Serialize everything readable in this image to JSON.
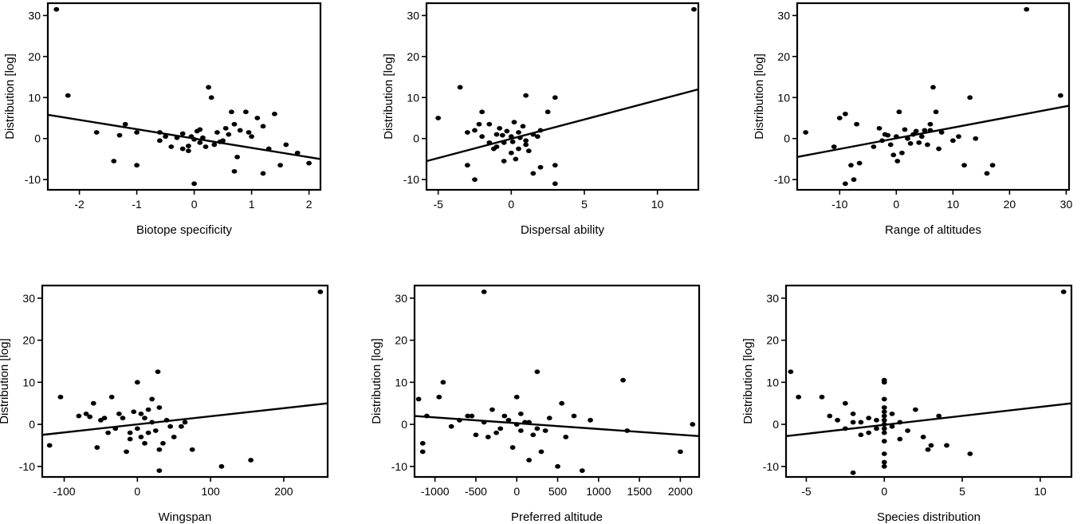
{
  "figure": {
    "background": "#ffffff",
    "ink": "#000000"
  },
  "chart_data": [
    {
      "type": "scatter",
      "title": "",
      "xlabel": "Biotope specificity",
      "ylabel": "Distribution [log]",
      "xlim": [
        -2.55,
        2.2
      ],
      "ylim": [
        -12.5,
        33
      ],
      "xticks": [
        -2,
        -1,
        0,
        1,
        2
      ],
      "yticks": [
        -10,
        0,
        10,
        20,
        30
      ],
      "points": [
        [
          -2.4,
          31.5
        ],
        [
          -2.2,
          10.5
        ],
        [
          -1.7,
          1.5
        ],
        [
          -1.4,
          -5.5
        ],
        [
          -1.0,
          -6.5
        ],
        [
          -1.2,
          3.5
        ],
        [
          -1.3,
          0.8
        ],
        [
          -1.0,
          1.5
        ],
        [
          -0.6,
          1.5
        ],
        [
          -0.5,
          0.5
        ],
        [
          -0.4,
          -2.0
        ],
        [
          -0.6,
          -0.5
        ],
        [
          -0.2,
          1.2
        ],
        [
          -0.1,
          -1.8
        ],
        [
          -0.05,
          0.5
        ],
        [
          0.0,
          -0.2
        ],
        [
          0.05,
          1.8
        ],
        [
          0.1,
          -1.0
        ],
        [
          0.15,
          0.2
        ],
        [
          0.2,
          -2.0
        ],
        [
          0.25,
          12.5
        ],
        [
          0.3,
          10.0
        ],
        [
          0.4,
          1.5
        ],
        [
          0.5,
          -0.5
        ],
        [
          0.6,
          1.0
        ],
        [
          0.65,
          6.5
        ],
        [
          0.7,
          3.5
        ],
        [
          0.75,
          -4.5
        ],
        [
          0.7,
          -8.0
        ],
        [
          0.9,
          6.5
        ],
        [
          1.0,
          0.5
        ],
        [
          1.2,
          3.0
        ],
        [
          1.3,
          -2.5
        ],
        [
          1.4,
          6.0
        ],
        [
          1.5,
          -6.5
        ],
        [
          1.6,
          -1.5
        ],
        [
          1.8,
          -3.5
        ],
        [
          2.0,
          -6.0
        ],
        [
          1.2,
          -8.5
        ],
        [
          0.0,
          -11.0
        ],
        [
          -0.1,
          -3.0
        ],
        [
          0.35,
          -1.5
        ],
        [
          0.8,
          2.0
        ],
        [
          0.45,
          -0.8
        ],
        [
          -0.3,
          0.2
        ],
        [
          0.95,
          1.5
        ],
        [
          1.1,
          5.0
        ],
        [
          0.1,
          2.2
        ],
        [
          -0.2,
          -2.5
        ],
        [
          0.55,
          2.5
        ]
      ],
      "fit": [
        [
          -2.55,
          5.8
        ],
        [
          2.2,
          -5.0
        ]
      ]
    },
    {
      "type": "scatter",
      "title": "",
      "xlabel": "Dispersal ability",
      "ylabel": "Distribution [log]",
      "xlim": [
        -5.8,
        12.8
      ],
      "ylim": [
        -12.5,
        33
      ],
      "xticks": [
        -5,
        0,
        5,
        10
      ],
      "yticks": [
        -10,
        0,
        10,
        20,
        30
      ],
      "points": [
        [
          12.5,
          31.5
        ],
        [
          -3.5,
          12.5
        ],
        [
          -5.0,
          5.0
        ],
        [
          -2.0,
          6.5
        ],
        [
          -3.0,
          -6.5
        ],
        [
          -2.5,
          -10.0
        ],
        [
          -1.5,
          3.5
        ],
        [
          -1.0,
          1.0
        ],
        [
          -0.5,
          -1.0
        ],
        [
          0.0,
          0.5
        ],
        [
          0.5,
          1.5
        ],
        [
          1.0,
          10.5
        ],
        [
          1.5,
          -8.5
        ],
        [
          2.0,
          -7.0
        ],
        [
          3.0,
          10.0
        ],
        [
          3.0,
          -6.5
        ],
        [
          3.0,
          -11.0
        ],
        [
          2.5,
          6.5
        ],
        [
          2.0,
          2.0
        ],
        [
          1.5,
          1.0
        ],
        [
          1.0,
          -0.5
        ],
        [
          0.5,
          -2.5
        ],
        [
          0.0,
          -3.5
        ],
        [
          -0.5,
          -5.5
        ],
        [
          -1.0,
          -2.0
        ],
        [
          -1.5,
          -1.0
        ],
        [
          -2.0,
          0.5
        ],
        [
          -2.5,
          2.0
        ],
        [
          -3.0,
          1.5
        ],
        [
          0.2,
          4.0
        ],
        [
          0.8,
          3.0
        ],
        [
          -0.8,
          2.5
        ],
        [
          1.2,
          -3.0
        ],
        [
          -0.3,
          1.8
        ],
        [
          0.6,
          0.2
        ],
        [
          1.8,
          0.5
        ],
        [
          -2.2,
          3.5
        ],
        [
          -1.2,
          -2.5
        ],
        [
          0.3,
          -5.0
        ],
        [
          1.0,
          -1.5
        ],
        [
          -0.6,
          0.8
        ],
        [
          0.1,
          -0.8
        ]
      ],
      "fit": [
        [
          -5.8,
          -5.5
        ],
        [
          12.8,
          12.0
        ]
      ]
    },
    {
      "type": "scatter",
      "title": "",
      "xlabel": "Range of altitudes",
      "ylabel": "Distribution [log]",
      "xlim": [
        -17.5,
        30.5
      ],
      "ylim": [
        -12.5,
        33
      ],
      "xticks": [
        -10,
        0,
        10,
        20,
        30
      ],
      "yticks": [
        -10,
        0,
        10,
        20,
        30
      ],
      "points": [
        [
          23.0,
          31.5
        ],
        [
          29.0,
          10.5
        ],
        [
          -16.0,
          1.5
        ],
        [
          -9.0,
          6.0
        ],
        [
          -10.0,
          5.0
        ],
        [
          -11.0,
          -2.0
        ],
        [
          -8.0,
          -6.5
        ],
        [
          -7.0,
          3.5
        ],
        [
          -7.5,
          -10.0
        ],
        [
          -9.0,
          -11.0
        ],
        [
          -6.5,
          -6.0
        ],
        [
          -4.0,
          -2.0
        ],
        [
          -2.0,
          1.0
        ],
        [
          -1.0,
          -1.5
        ],
        [
          0.0,
          0.5
        ],
        [
          0.5,
          6.5
        ],
        [
          1.0,
          -3.5
        ],
        [
          2.0,
          0.0
        ],
        [
          3.0,
          1.0
        ],
        [
          4.0,
          -1.0
        ],
        [
          5.0,
          2.0
        ],
        [
          6.0,
          3.5
        ],
        [
          6.5,
          12.5
        ],
        [
          7.0,
          6.5
        ],
        [
          7.5,
          -2.5
        ],
        [
          8.0,
          1.5
        ],
        [
          10.0,
          -0.5
        ],
        [
          11.0,
          0.5
        ],
        [
          12.0,
          -6.5
        ],
        [
          13.0,
          10.0
        ],
        [
          14.0,
          0.0
        ],
        [
          16.0,
          -8.5
        ],
        [
          17.0,
          -6.5
        ],
        [
          -3.0,
          2.5
        ],
        [
          -1.5,
          0.8
        ],
        [
          1.5,
          2.2
        ],
        [
          2.5,
          -1.2
        ],
        [
          4.5,
          0.5
        ],
        [
          -0.5,
          -4.0
        ],
        [
          0.2,
          -5.5
        ],
        [
          5.5,
          -1.5
        ],
        [
          3.5,
          1.8
        ],
        [
          -2.5,
          -0.5
        ],
        [
          6.0,
          2.0
        ]
      ],
      "fit": [
        [
          -17.5,
          -4.5
        ],
        [
          30.5,
          8.0
        ]
      ]
    },
    {
      "type": "scatter",
      "title": "",
      "xlabel": "Wingspan",
      "ylabel": "Distribution [log]",
      "xlim": [
        -130,
        260
      ],
      "ylim": [
        -12.5,
        33
      ],
      "xticks": [
        -100,
        0,
        100,
        200
      ],
      "yticks": [
        -10,
        0,
        10,
        20,
        30
      ],
      "points": [
        [
          250,
          31.5
        ],
        [
          -120,
          -5.0
        ],
        [
          -105,
          6.5
        ],
        [
          -80,
          2.0
        ],
        [
          -70,
          2.5
        ],
        [
          -60,
          5.0
        ],
        [
          -55,
          -5.5
        ],
        [
          -45,
          1.5
        ],
        [
          -35,
          6.5
        ],
        [
          -30,
          -1.0
        ],
        [
          -20,
          1.5
        ],
        [
          -15,
          -6.5
        ],
        [
          -10,
          -2.0
        ],
        [
          -5,
          3.0
        ],
        [
          0,
          10.0
        ],
        [
          5,
          -3.0
        ],
        [
          10,
          -4.5
        ],
        [
          15,
          3.5
        ],
        [
          20,
          6.0
        ],
        [
          25,
          -1.5
        ],
        [
          28,
          12.5
        ],
        [
          30,
          -6.0
        ],
        [
          30,
          -11.0
        ],
        [
          35,
          -4.5
        ],
        [
          45,
          -0.5
        ],
        [
          50,
          -3.0
        ],
        [
          60,
          -0.5
        ],
        [
          65,
          0.5
        ],
        [
          75,
          -6.0
        ],
        [
          115,
          -10.0
        ],
        [
          155,
          -8.5
        ],
        [
          -25,
          2.5
        ],
        [
          -50,
          1.0
        ],
        [
          -40,
          -2.0
        ],
        [
          0,
          -1.0
        ],
        [
          10,
          1.5
        ],
        [
          20,
          0.5
        ],
        [
          40,
          1.0
        ],
        [
          -10,
          -3.5
        ],
        [
          5,
          2.5
        ],
        [
          15,
          -2.0
        ],
        [
          -65,
          1.8
        ],
        [
          30,
          4.0
        ]
      ],
      "fit": [
        [
          -130,
          -2.5
        ],
        [
          260,
          5.0
        ]
      ]
    },
    {
      "type": "scatter",
      "title": "",
      "xlabel": "Preferred altitude",
      "ylabel": "Distribution [log]",
      "xlim": [
        -1250,
        2230
      ],
      "ylim": [
        -12.5,
        33
      ],
      "xticks": [
        -1000,
        -500,
        0,
        500,
        1000,
        1500,
        2000
      ],
      "yticks": [
        -10,
        0,
        10,
        20,
        30
      ],
      "points": [
        [
          -400,
          31.5
        ],
        [
          -1150,
          -6.5
        ],
        [
          -1100,
          2.0
        ],
        [
          -900,
          10.0
        ],
        [
          -800,
          -0.5
        ],
        [
          -600,
          2.0
        ],
        [
          -500,
          -2.5
        ],
        [
          -400,
          0.5
        ],
        [
          -300,
          3.5
        ],
        [
          -200,
          -1.0
        ],
        [
          -100,
          1.0
        ],
        [
          -50,
          -5.5
        ],
        [
          0,
          6.5
        ],
        [
          50,
          -1.5
        ],
        [
          100,
          0.5
        ],
        [
          150,
          -8.5
        ],
        [
          200,
          -2.5
        ],
        [
          250,
          12.5
        ],
        [
          300,
          -6.5
        ],
        [
          350,
          -1.5
        ],
        [
          400,
          1.5
        ],
        [
          500,
          -10.0
        ],
        [
          550,
          5.0
        ],
        [
          600,
          -3.0
        ],
        [
          700,
          2.0
        ],
        [
          800,
          -11.0
        ],
        [
          900,
          1.0
        ],
        [
          1300,
          10.5
        ],
        [
          1350,
          -1.5
        ],
        [
          2000,
          -6.5
        ],
        [
          2150,
          0.0
        ],
        [
          -700,
          1.0
        ],
        [
          -250,
          -2.0
        ],
        [
          -150,
          2.0
        ],
        [
          0,
          0.0
        ],
        [
          50,
          2.5
        ],
        [
          150,
          0.5
        ],
        [
          250,
          -1.0
        ],
        [
          -1200,
          6.0
        ],
        [
          -1150,
          -4.5
        ],
        [
          -950,
          6.5
        ],
        [
          -550,
          2.0
        ],
        [
          -350,
          -3.0
        ]
      ],
      "fit": [
        [
          -1250,
          2.0
        ],
        [
          2230,
          -2.8
        ]
      ]
    },
    {
      "type": "scatter",
      "title": "",
      "xlabel": "Species distribution",
      "ylabel": "Distribution [log]",
      "xlim": [
        -6.3,
        12.0
      ],
      "ylim": [
        -12.5,
        33
      ],
      "xticks": [
        -5,
        0,
        5,
        10
      ],
      "yticks": [
        -10,
        0,
        10,
        20,
        30
      ],
      "points": [
        [
          11.5,
          31.5
        ],
        [
          -6.0,
          12.5
        ],
        [
          -5.5,
          6.5
        ],
        [
          -4.0,
          6.5
        ],
        [
          -3.5,
          2.0
        ],
        [
          -3.0,
          1.0
        ],
        [
          -2.5,
          5.0
        ],
        [
          -2.0,
          -11.5
        ],
        [
          -2.0,
          2.5
        ],
        [
          -1.5,
          0.5
        ],
        [
          -1.0,
          -2.0
        ],
        [
          -0.5,
          -1.0
        ],
        [
          0.0,
          10.5
        ],
        [
          0.0,
          10.0
        ],
        [
          0.0,
          6.0
        ],
        [
          0.0,
          4.0
        ],
        [
          0.0,
          3.0
        ],
        [
          0.0,
          2.0
        ],
        [
          0.0,
          1.0
        ],
        [
          0.0,
          0.0
        ],
        [
          0.0,
          -1.0
        ],
        [
          0.0,
          -2.0
        ],
        [
          0.0,
          -4.0
        ],
        [
          0.0,
          -7.0
        ],
        [
          0.0,
          -9.0
        ],
        [
          0.0,
          -10.0
        ],
        [
          0.5,
          -0.5
        ],
        [
          1.0,
          0.5
        ],
        [
          1.5,
          -1.5
        ],
        [
          2.0,
          3.5
        ],
        [
          2.5,
          -3.0
        ],
        [
          3.0,
          -5.0
        ],
        [
          3.5,
          2.0
        ],
        [
          4.0,
          -5.0
        ],
        [
          5.5,
          -7.0
        ],
        [
          -2.5,
          -1.0
        ],
        [
          -1.5,
          -2.5
        ],
        [
          -1.0,
          1.5
        ],
        [
          0.5,
          2.5
        ],
        [
          -0.5,
          1.0
        ],
        [
          1.0,
          -3.5
        ],
        [
          2.8,
          -6.0
        ],
        [
          -2.0,
          0.5
        ]
      ],
      "fit": [
        [
          -6.3,
          -2.8
        ],
        [
          12.0,
          5.0
        ]
      ]
    }
  ]
}
